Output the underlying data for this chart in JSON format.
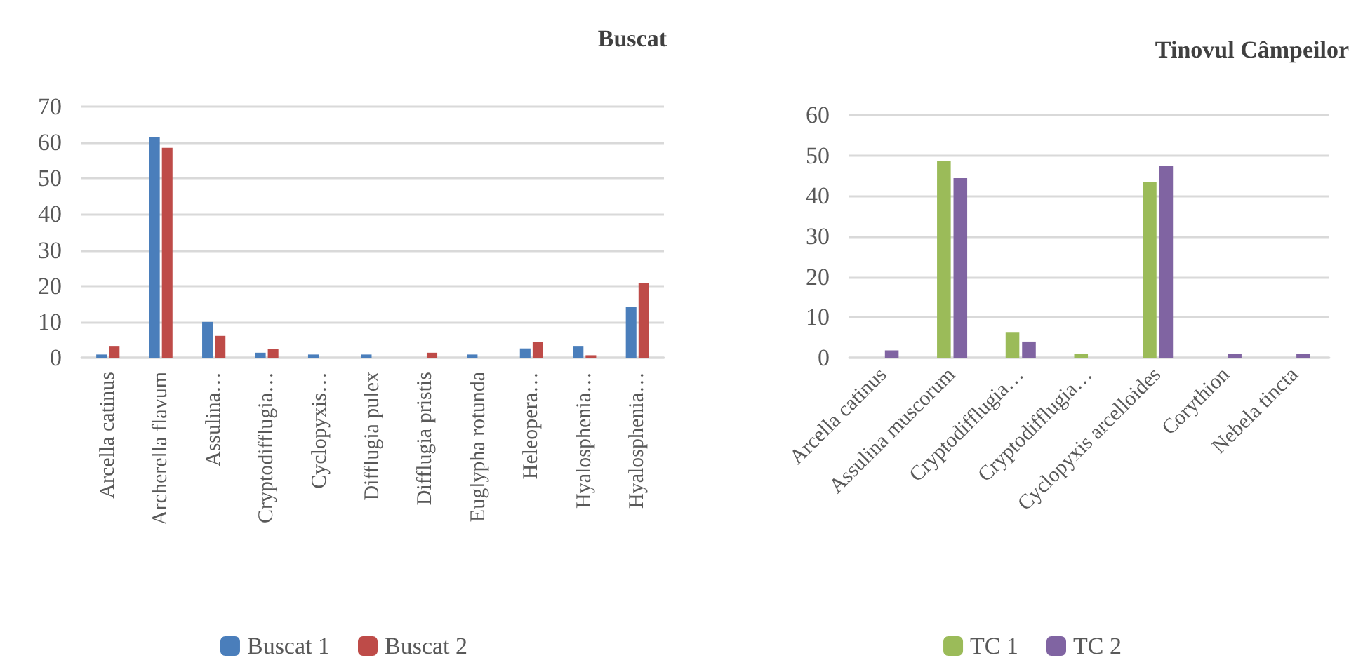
{
  "chart_data": [
    {
      "type": "bar",
      "title": "Buscat",
      "categories": [
        "Arcella catinus",
        "Archerella flavum",
        "Assulina…",
        "Cryptodifflugia…",
        "Cyclopyxis…",
        "Difflugia pulex",
        "Difflugia pristis",
        "Euglypha rotunda",
        "Heleopera…",
        "Hyalosphenia…",
        "Hyalosphenia…"
      ],
      "series": [
        {
          "name": "Buscat 1",
          "color": "#4a7ebb",
          "values": [
            0.9,
            61.5,
            10,
            1.4,
            0.9,
            0.9,
            0,
            0.9,
            2.6,
            3.3,
            14.2
          ]
        },
        {
          "name": "Buscat 2",
          "color": "#be4b48",
          "values": [
            3.3,
            58.5,
            6.1,
            2.5,
            0,
            0,
            1.4,
            0,
            4.3,
            0.7,
            20.8
          ]
        }
      ],
      "ylim": [
        0,
        70
      ],
      "yticks": [
        0,
        10,
        20,
        30,
        40,
        50,
        60,
        70
      ],
      "grid": "y",
      "legend": "bottom"
    },
    {
      "type": "bar",
      "title": "Tinovul Câmpeilor",
      "categories": [
        "Arcella catinus",
        "Assulina muscorum",
        "Cryptodifflugia…",
        "Cryptodifflugia…",
        "Cyclopyxis arcelloides",
        "Corythion",
        "Nebela tincta"
      ],
      "series": [
        {
          "name": "TC 1",
          "color": "#9bbb59",
          "values": [
            0,
            48.7,
            6.2,
            1,
            43.5,
            0,
            0
          ]
        },
        {
          "name": "TC 2",
          "color": "#8064a2",
          "values": [
            1.8,
            44.4,
            4,
            0,
            47.4,
            0.9,
            0.9
          ]
        }
      ],
      "ylim": [
        0,
        60
      ],
      "yticks": [
        0,
        10,
        20,
        30,
        40,
        50,
        60
      ],
      "grid": "y",
      "legend": "bottom"
    }
  ]
}
